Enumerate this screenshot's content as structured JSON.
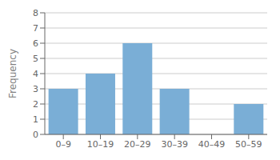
{
  "chart_data": {
    "type": "bar",
    "categories": [
      "0–9",
      "10–19",
      "20–29",
      "30–39",
      "40–49",
      "50–59"
    ],
    "values": [
      3,
      4,
      6,
      3,
      0,
      2
    ],
    "color": "#7aaed6",
    "ylabel": "Frequency",
    "ylim": [
      0,
      8
    ],
    "yticks": [
      0,
      1,
      2,
      3,
      4,
      5,
      6,
      7,
      8
    ],
    "grid": true
  }
}
